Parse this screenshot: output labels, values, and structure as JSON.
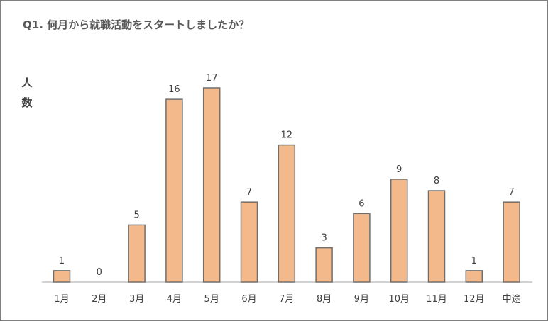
{
  "chart_data": {
    "type": "bar",
    "title": "Q1. 何月から就職活動をスタートしましたか？",
    "ylabel": "人数",
    "xlabel": "",
    "categories": [
      "1月",
      "2月",
      "3月",
      "4月",
      "5月",
      "6月",
      "7月",
      "8月",
      "9月",
      "10月",
      "11月",
      "12月",
      "中途"
    ],
    "values": [
      1,
      0,
      5,
      16,
      17,
      7,
      12,
      3,
      6,
      9,
      8,
      1,
      7
    ],
    "ylim": [
      0,
      17
    ],
    "grid": false,
    "legend": "none",
    "bar_color": "#f4b98a",
    "bar_edge_color": "#6f6f6f"
  }
}
